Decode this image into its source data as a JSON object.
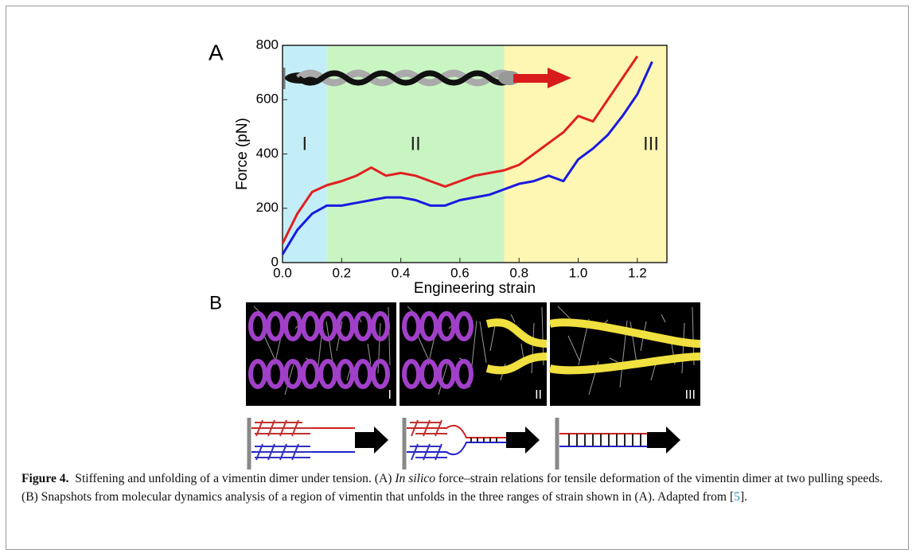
{
  "chart_data": {
    "type": "line",
    "panel_label": "A",
    "x_label": "Engineering strain",
    "y_label": "Force (pN)",
    "xlim": [
      0,
      1.3
    ],
    "ylim": [
      0,
      800
    ],
    "xticks": [
      {
        "value": 0,
        "label": "0.0"
      },
      0.2,
      0.4,
      0.6,
      0.8,
      {
        "value": 1,
        "label": "1.0"
      },
      1.2
    ],
    "yticks": [
      0,
      200,
      400,
      600,
      800
    ],
    "regions": [
      {
        "label": "I",
        "xlim": [
          0,
          0.15
        ],
        "color": "#c4eef7"
      },
      {
        "label": "II",
        "xlim": [
          0.15,
          0.75
        ],
        "color": "#c9f5c3"
      },
      {
        "label": "III",
        "xlim": [
          0.75,
          1.3
        ],
        "color": "#fdf7b3"
      }
    ],
    "x": [
      0,
      0.05,
      0.1,
      0.15,
      0.2,
      0.25,
      0.3,
      0.35,
      0.4,
      0.45,
      0.5,
      0.55,
      0.6,
      0.65,
      0.7,
      0.75,
      0.8,
      0.85,
      0.9,
      0.95,
      1.0,
      1.05,
      1.1,
      1.15,
      1.2,
      1.25
    ],
    "series": [
      {
        "color": "#e02020",
        "values": [
          70,
          180,
          260,
          285,
          300,
          320,
          350,
          320,
          330,
          320,
          300,
          280,
          300,
          320,
          330,
          340,
          360,
          400,
          440,
          480,
          540,
          520,
          600,
          680,
          760,
          null
        ]
      },
      {
        "color": "#1a1ae0",
        "values": [
          30,
          120,
          180,
          210,
          210,
          220,
          230,
          240,
          240,
          230,
          210,
          210,
          230,
          240,
          250,
          270,
          290,
          300,
          320,
          300,
          380,
          420,
          470,
          540,
          620,
          740
        ]
      }
    ]
  },
  "panel_b": {
    "label": "B",
    "snapshots": [
      "I",
      "II",
      "III"
    ]
  },
  "caption": {
    "label": "Figure 4.",
    "text_1": "Stiffening and unfolding of a vimentin dimer under tension. (A) ",
    "italic": "In silico",
    "text_2": " force–strain relations for tensile deformation of the vimentin dimer at two pulling speeds. (B) Snapshots from molecular dynamics analysis of a region of vimentin that unfolds in the three ranges of strain shown in (A). Adapted from [",
    "ref": "5",
    "text_3": "]."
  }
}
